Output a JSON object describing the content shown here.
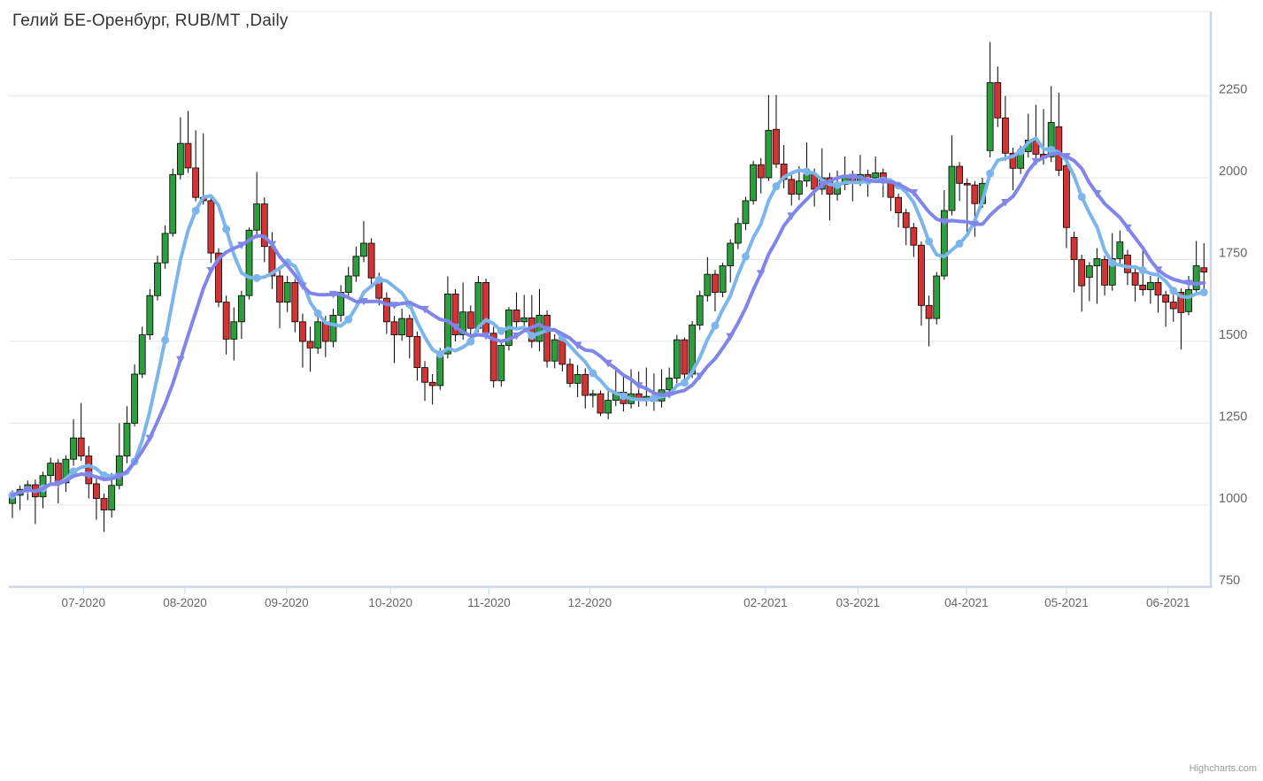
{
  "title": "Гелий БЕ-Оренбург, RUB/MT ,Daily",
  "credit": "Highcharts.com",
  "colors": {
    "up_candle": "#2e9d3e",
    "down_candle": "#d03434",
    "candle_outline": "#000000",
    "ma_fast": "#7cb5ec",
    "ma_slow": "#8085e9",
    "gridline": "#e6e6e6",
    "axis_line": "#ccd6eb",
    "axis_label": "#666666",
    "title_text": "#333333",
    "credit_text": "#999999"
  },
  "chart_data": {
    "type": "candlestick",
    "title": "Гелий БЕ-Оренбург, RUB/MT ,Daily",
    "xlabel": "",
    "ylabel": "RUB/MT",
    "grid": true,
    "legend_position": "none",
    "y_axis": {
      "side": "right",
      "ticks": [
        750,
        1000,
        1250,
        1500,
        1750,
        2000,
        2250
      ],
      "min": 750,
      "max": 2507
    },
    "x_axis": {
      "ticks": [
        {
          "label": "07-2020",
          "index": 9.3
        },
        {
          "label": "08-2020",
          "index": 22.6
        },
        {
          "label": "09-2020",
          "index": 35.9
        },
        {
          "label": "10-2020",
          "index": 49.5
        },
        {
          "label": "11-2020",
          "index": 62.4
        },
        {
          "label": "12-2020",
          "index": 75.6
        },
        {
          "label": "02-2021",
          "index": 98.6
        },
        {
          "label": "03-2021",
          "index": 110.7
        },
        {
          "label": "04-2021",
          "index": 124.9
        },
        {
          "label": "05-2021",
          "index": 138.0
        },
        {
          "label": "06-2021",
          "index": 151.3
        }
      ]
    },
    "overlays": [
      {
        "name": "sma-fast",
        "type": "sma",
        "period": 7,
        "color": "#7cb5ec",
        "marker": "circle",
        "marker_every": 4,
        "marker_phase": 0
      },
      {
        "name": "sma-slow",
        "type": "sma",
        "period": 13,
        "color": "#8085e9",
        "marker": "triangle-down",
        "marker_every": 4,
        "marker_phase": 2
      }
    ],
    "ohlc": [
      [
        1005,
        1045,
        960,
        1030
      ],
      [
        1030,
        1060,
        985,
        1048
      ],
      [
        1048,
        1075,
        1015,
        1062
      ],
      [
        1062,
        1078,
        942,
        1025
      ],
      [
        1025,
        1102,
        990,
        1090
      ],
      [
        1090,
        1145,
        1060,
        1128
      ],
      [
        1128,
        1140,
        1005,
        1068
      ],
      [
        1068,
        1152,
        1040,
        1140
      ],
      [
        1140,
        1262,
        1120,
        1205
      ],
      [
        1205,
        1312,
        1135,
        1150
      ],
      [
        1150,
        1180,
        1020,
        1065
      ],
      [
        1065,
        1088,
        955,
        1020
      ],
      [
        1020,
        1035,
        918,
        985
      ],
      [
        985,
        1098,
        962,
        1060
      ],
      [
        1060,
        1250,
        1048,
        1150
      ],
      [
        1150,
        1302,
        1128,
        1250
      ],
      [
        1250,
        1430,
        1240,
        1400
      ],
      [
        1400,
        1545,
        1388,
        1520
      ],
      [
        1520,
        1660,
        1505,
        1640
      ],
      [
        1640,
        1762,
        1625,
        1740
      ],
      [
        1740,
        1855,
        1722,
        1830
      ],
      [
        1830,
        2028,
        1820,
        2010
      ],
      [
        2010,
        2185,
        1995,
        2105
      ],
      [
        2105,
        2204,
        2015,
        2030
      ],
      [
        2030,
        2145,
        1928,
        1940
      ],
      [
        1940,
        2136,
        1918,
        1930
      ],
      [
        1930,
        1950,
        1740,
        1770
      ],
      [
        1770,
        1785,
        1605,
        1620
      ],
      [
        1620,
        1640,
        1460,
        1507
      ],
      [
        1507,
        1604,
        1442,
        1560
      ],
      [
        1560,
        1655,
        1508,
        1640
      ],
      [
        1640,
        1848,
        1628,
        1840
      ],
      [
        1840,
        2018,
        1815,
        1920
      ],
      [
        1920,
        1940,
        1742,
        1790
      ],
      [
        1790,
        1834,
        1660,
        1700
      ],
      [
        1700,
        1725,
        1540,
        1620
      ],
      [
        1620,
        1700,
        1590,
        1680
      ],
      [
        1680,
        1690,
        1528,
        1560
      ],
      [
        1560,
        1585,
        1420,
        1500
      ],
      [
        1500,
        1545,
        1407,
        1480
      ],
      [
        1480,
        1582,
        1462,
        1560
      ],
      [
        1560,
        1578,
        1452,
        1500
      ],
      [
        1500,
        1600,
        1482,
        1580
      ],
      [
        1580,
        1672,
        1560,
        1650
      ],
      [
        1650,
        1728,
        1632,
        1700
      ],
      [
        1700,
        1790,
        1682,
        1760
      ],
      [
        1760,
        1868,
        1742,
        1800
      ],
      [
        1800,
        1815,
        1662,
        1694
      ],
      [
        1694,
        1710,
        1610,
        1632
      ],
      [
        1632,
        1650,
        1523,
        1560
      ],
      [
        1560,
        1578,
        1434,
        1520
      ],
      [
        1520,
        1600,
        1502,
        1570
      ],
      [
        1570,
        1582,
        1448,
        1515
      ],
      [
        1515,
        1530,
        1380,
        1420
      ],
      [
        1420,
        1440,
        1318,
        1375
      ],
      [
        1375,
        1400,
        1307,
        1365
      ],
      [
        1365,
        1480,
        1352,
        1462
      ],
      [
        1462,
        1699,
        1448,
        1645
      ],
      [
        1645,
        1660,
        1500,
        1520
      ],
      [
        1520,
        1680,
        1505,
        1590
      ],
      [
        1590,
        1610,
        1510,
        1540
      ],
      [
        1540,
        1700,
        1528,
        1680
      ],
      [
        1680,
        1692,
        1515,
        1525
      ],
      [
        1525,
        1545,
        1359,
        1380
      ],
      [
        1380,
        1495,
        1362,
        1488
      ],
      [
        1488,
        1605,
        1472,
        1596
      ],
      [
        1596,
        1650,
        1535,
        1560
      ],
      [
        1560,
        1642,
        1540,
        1572
      ],
      [
        1572,
        1642,
        1480,
        1500
      ],
      [
        1500,
        1660,
        1470,
        1580
      ],
      [
        1580,
        1595,
        1420,
        1440
      ],
      [
        1440,
        1522,
        1418,
        1505
      ],
      [
        1505,
        1520,
        1408,
        1430
      ],
      [
        1430,
        1448,
        1360,
        1372
      ],
      [
        1372,
        1428,
        1330,
        1399
      ],
      [
        1399,
        1418,
        1295,
        1335
      ],
      [
        1335,
        1352,
        1298,
        1340
      ],
      [
        1340,
        1350,
        1272,
        1281
      ],
      [
        1281,
        1348,
        1262,
        1320
      ],
      [
        1320,
        1422,
        1302,
        1345
      ],
      [
        1345,
        1400,
        1286,
        1310
      ],
      [
        1310,
        1415,
        1295,
        1340
      ],
      [
        1340,
        1408,
        1300,
        1322
      ],
      [
        1322,
        1420,
        1302,
        1332
      ],
      [
        1332,
        1402,
        1288,
        1318
      ],
      [
        1318,
        1415,
        1298,
        1352
      ],
      [
        1352,
        1420,
        1330,
        1388
      ],
      [
        1388,
        1520,
        1372,
        1505
      ],
      [
        1505,
        1512,
        1368,
        1400
      ],
      [
        1400,
        1562,
        1388,
        1550
      ],
      [
        1550,
        1655,
        1535,
        1640
      ],
      [
        1640,
        1758,
        1622,
        1705
      ],
      [
        1705,
        1718,
        1592,
        1650
      ],
      [
        1650,
        1740,
        1635,
        1731
      ],
      [
        1731,
        1812,
        1680,
        1800
      ],
      [
        1800,
        1878,
        1782,
        1860
      ],
      [
        1860,
        1942,
        1840,
        1930
      ],
      [
        1930,
        2052,
        1918,
        2040
      ],
      [
        2040,
        2060,
        1952,
        2000
      ],
      [
        2000,
        2253,
        1990,
        2145
      ],
      [
        2148,
        2253,
        2030,
        2042
      ],
      [
        2042,
        2100,
        1968,
        1995
      ],
      [
        1995,
        2012,
        1915,
        1950
      ],
      [
        1950,
        2035,
        1932,
        1990
      ],
      [
        1990,
        2108,
        1972,
        2010
      ],
      [
        2010,
        2028,
        1912,
        1965
      ],
      [
        1965,
        2090,
        1948,
        2000
      ],
      [
        2000,
        2015,
        1870,
        1950
      ],
      [
        1950,
        2022,
        1930,
        1980
      ],
      [
        1980,
        2065,
        1962,
        2005
      ],
      [
        2005,
        2022,
        1928,
        1990
      ],
      [
        1990,
        2070,
        1975,
        2010
      ],
      [
        2010,
        2025,
        1942,
        2000
      ],
      [
        2000,
        2065,
        1985,
        2015
      ],
      [
        2015,
        2028,
        1940,
        1985
      ],
      [
        1985,
        1998,
        1898,
        1940
      ],
      [
        1940,
        1952,
        1848,
        1893
      ],
      [
        1893,
        1905,
        1794,
        1848
      ],
      [
        1848,
        1862,
        1758,
        1794
      ],
      [
        1794,
        1805,
        1548,
        1610
      ],
      [
        1610,
        1640,
        1485,
        1570
      ],
      [
        1570,
        1712,
        1552,
        1700
      ],
      [
        1700,
        1962,
        1688,
        1900
      ],
      [
        1900,
        2130,
        1885,
        2035
      ],
      [
        2035,
        2048,
        1929,
        1983
      ],
      [
        1983,
        1998,
        1831,
        1978
      ],
      [
        1978,
        1990,
        1820,
        1921
      ],
      [
        1921,
        2000,
        1908,
        1983
      ],
      [
        2083,
        2415,
        2062,
        2291
      ],
      [
        2291,
        2340,
        2155,
        2183
      ],
      [
        2183,
        2250,
        2052,
        2075
      ],
      [
        2075,
        2092,
        1962,
        2029
      ],
      [
        2029,
        2098,
        2012,
        2080
      ],
      [
        2080,
        2196,
        2062,
        2115
      ],
      [
        2112,
        2223,
        2052,
        2072
      ],
      [
        2072,
        2210,
        2040,
        2060
      ],
      [
        2064,
        2280,
        2048,
        2169
      ],
      [
        2156,
        2260,
        2005,
        2023
      ],
      [
        2037,
        2052,
        1785,
        1848
      ],
      [
        1818,
        1835,
        1650,
        1750
      ],
      [
        1750,
        1765,
        1591,
        1670
      ],
      [
        1696,
        1742,
        1623,
        1731
      ],
      [
        1731,
        1785,
        1615,
        1753
      ],
      [
        1750,
        1762,
        1640,
        1672
      ],
      [
        1672,
        1831,
        1655,
        1753
      ],
      [
        1753,
        1839,
        1738,
        1804
      ],
      [
        1764,
        1780,
        1672,
        1710
      ],
      [
        1710,
        1725,
        1622,
        1672
      ],
      [
        1672,
        1790,
        1640,
        1658
      ],
      [
        1658,
        1700,
        1615,
        1680
      ],
      [
        1680,
        1695,
        1588,
        1642
      ],
      [
        1642,
        1655,
        1545,
        1620
      ],
      [
        1620,
        1648,
        1560,
        1600
      ],
      [
        1650,
        1662,
        1475,
        1588
      ],
      [
        1591,
        1700,
        1580,
        1658
      ],
      [
        1658,
        1807,
        1648,
        1731
      ],
      [
        1725,
        1800,
        1642,
        1712
      ]
    ]
  },
  "layout_note": "candlestick daily price chart with two moving-average overlays, y-axis on right, Highcharts credit bottom-right"
}
